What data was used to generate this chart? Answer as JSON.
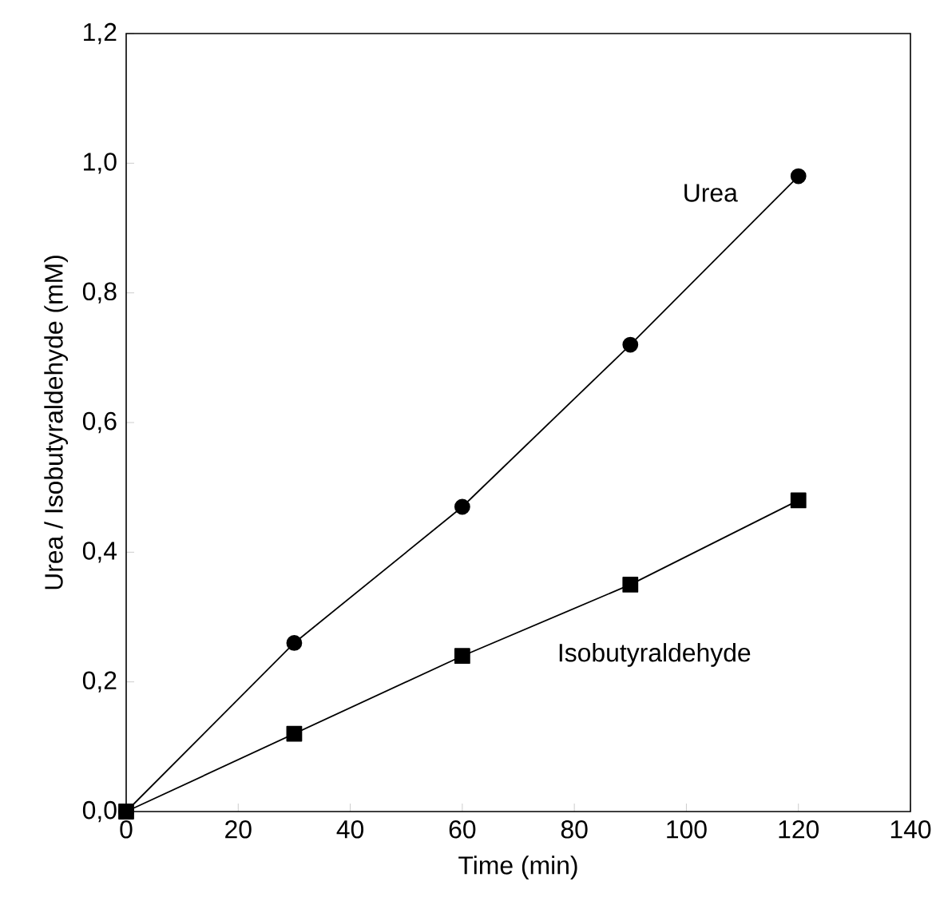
{
  "chart_data": {
    "type": "line",
    "xlabel": "Time (min)",
    "ylabel": "Urea / Isobutyraldehyde (mM)",
    "x": [
      0,
      30,
      60,
      90,
      120
    ],
    "series": [
      {
        "name": "Urea",
        "color": "#000000",
        "marker": "circle",
        "values": [
          0,
          0.26,
          0.47,
          0.72,
          0.98
        ]
      },
      {
        "name": "Isobutyraldehyde",
        "color": "#000000",
        "marker": "square",
        "values": [
          0,
          0.12,
          0.24,
          0.35,
          0.48
        ]
      }
    ],
    "xlim": [
      0,
      140
    ],
    "xticks": [
      0,
      20,
      40,
      60,
      80,
      100,
      120,
      140
    ],
    "ylim": [
      0,
      1.2
    ],
    "yticks": [
      {
        "value": 0,
        "label": "0,0"
      },
      {
        "value": 0.2,
        "label": "0,2"
      },
      {
        "value": 0.4,
        "label": "0,4"
      },
      {
        "value": 0.6,
        "label": "0,6"
      },
      {
        "value": 0.8,
        "label": "0,8"
      },
      {
        "value": 1.0,
        "label": "1,0"
      },
      {
        "value": 1.2,
        "label": "1,2"
      }
    ],
    "grid": false,
    "legend": false,
    "line_style": "solid"
  }
}
